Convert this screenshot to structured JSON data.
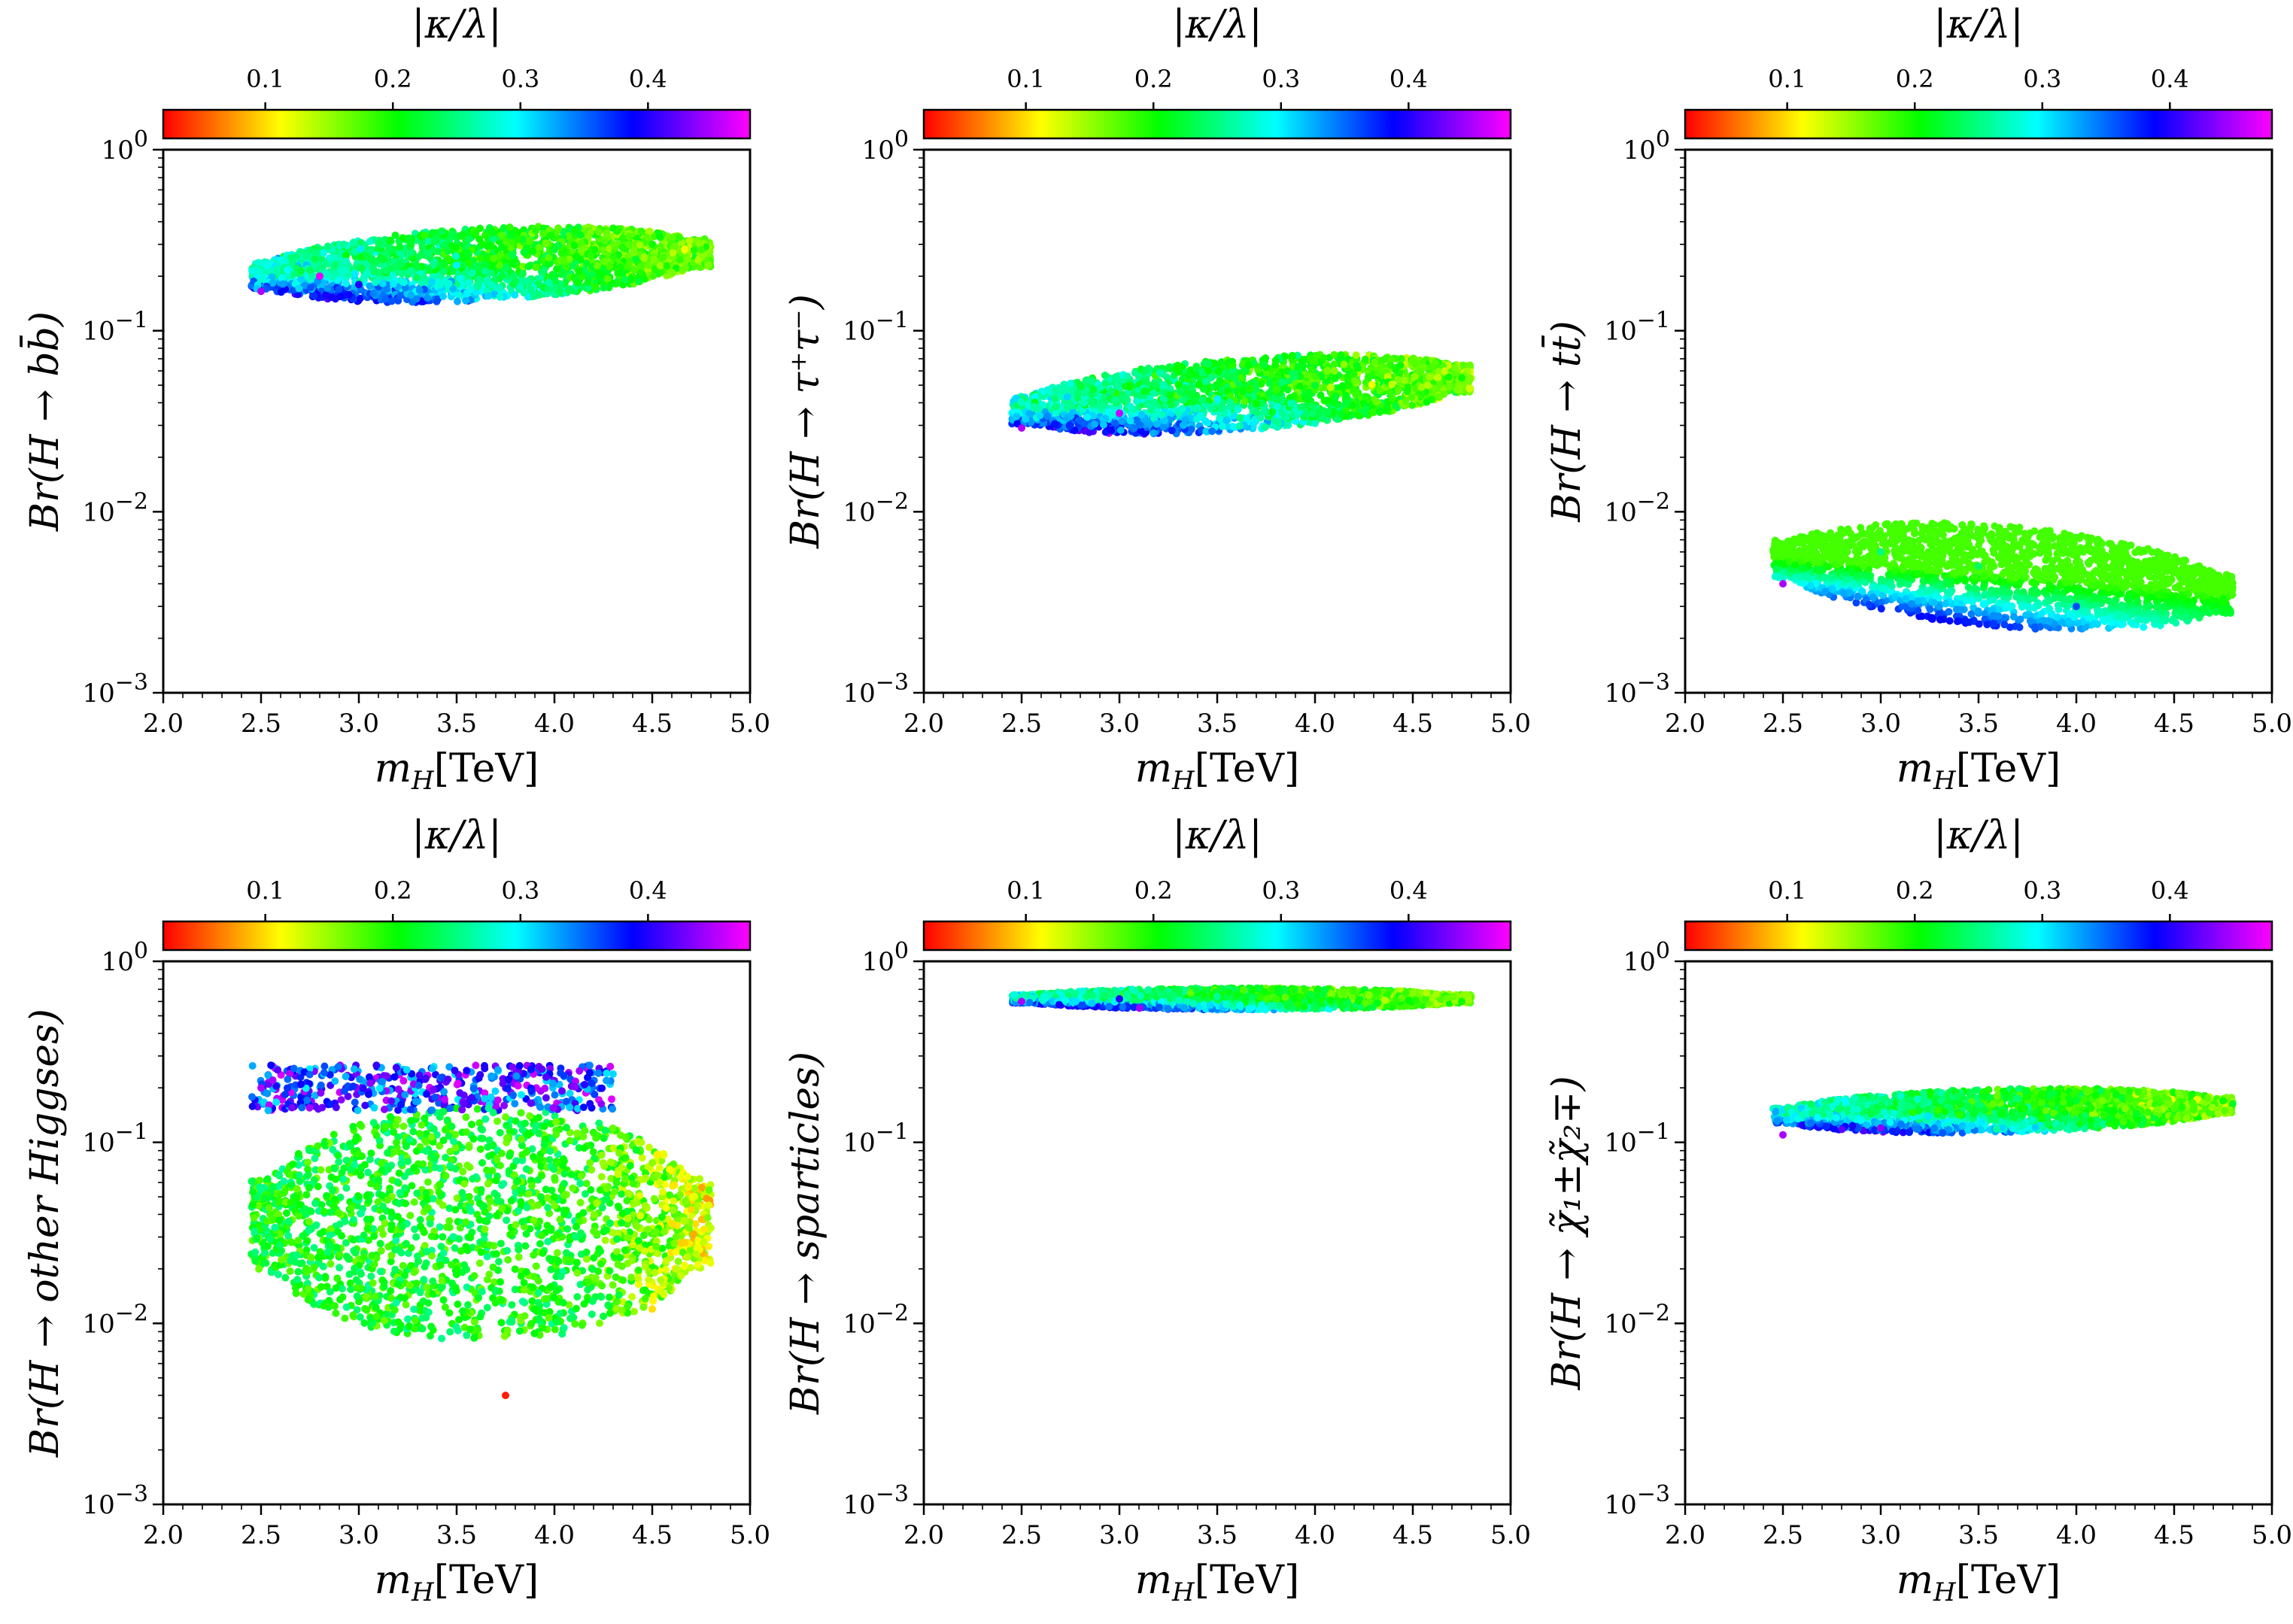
{
  "figure": {
    "colormap_stops": [
      "#ff0000",
      "#ffff00",
      "#00ff00",
      "#00ffff",
      "#0000ff",
      "#ff00ff"
    ]
  },
  "chart_data": [
    {
      "type": "scatter",
      "xlabel_main": "m",
      "xlabel_sub": "H",
      "xlabel_unit": "[TeV]",
      "ylabel": "Br(H → bb̄)",
      "xlim": [
        2.0,
        5.0
      ],
      "ylim": [
        0.001,
        1
      ],
      "yscale": "log",
      "xticks": [
        "2.0",
        "2.5",
        "3.0",
        "3.5",
        "4.0",
        "4.5",
        "5.0"
      ],
      "yticks": [
        {
          "base": "10",
          "exp": "0"
        },
        {
          "base": "10",
          "exp": "−1"
        },
        {
          "base": "10",
          "exp": "−2"
        },
        {
          "base": "10",
          "exp": "−3"
        }
      ],
      "colorbar": {
        "label": "|κ/λ|",
        "range": [
          0.02,
          0.48
        ],
        "ticks": [
          "0.1",
          "0.2",
          "0.3",
          "0.4"
        ]
      },
      "region": {
        "x": [
          2.45,
          4.8
        ],
        "y_center_start": 0.2,
        "y_center_end": 0.27,
        "spread_dex": 0.2,
        "seed": 11
      },
      "points": [
        {
          "x": 2.5,
          "y": 0.165,
          "c": 0.45
        },
        {
          "x": 2.8,
          "y": 0.2,
          "c": 0.47
        },
        {
          "x": 3.0,
          "y": 0.18,
          "c": 0.4
        },
        {
          "x": 3.5,
          "y": 0.23,
          "c": 0.3
        },
        {
          "x": 4.0,
          "y": 0.28,
          "c": 0.22
        },
        {
          "x": 4.5,
          "y": 0.3,
          "c": 0.2
        },
        {
          "x": 4.75,
          "y": 0.28,
          "c": 0.18
        }
      ]
    },
    {
      "type": "scatter",
      "xlabel_main": "m",
      "xlabel_sub": "H",
      "xlabel_unit": "[TeV]",
      "ylabel": "Br(H → τ⁺τ⁻)",
      "xlim": [
        2.0,
        5.0
      ],
      "ylim": [
        0.001,
        1
      ],
      "yscale": "log",
      "xticks": [
        "2.0",
        "2.5",
        "3.0",
        "3.5",
        "4.0",
        "4.5",
        "5.0"
      ],
      "yticks": [
        {
          "base": "10",
          "exp": "0"
        },
        {
          "base": "10",
          "exp": "−1"
        },
        {
          "base": "10",
          "exp": "−2"
        },
        {
          "base": "10",
          "exp": "−3"
        }
      ],
      "colorbar": {
        "label": "|κ/λ|",
        "range": [
          0.02,
          0.48
        ],
        "ticks": [
          "0.1",
          "0.2",
          "0.3",
          "0.4"
        ]
      },
      "region": {
        "x": [
          2.45,
          4.8
        ],
        "y_center_start": 0.036,
        "y_center_end": 0.055,
        "spread_dex": 0.2,
        "seed": 23
      },
      "points": [
        {
          "x": 2.5,
          "y": 0.029,
          "c": 0.45
        },
        {
          "x": 3.0,
          "y": 0.035,
          "c": 0.46
        },
        {
          "x": 3.5,
          "y": 0.042,
          "c": 0.3
        },
        {
          "x": 4.0,
          "y": 0.05,
          "c": 0.22
        },
        {
          "x": 4.75,
          "y": 0.055,
          "c": 0.2
        }
      ]
    },
    {
      "type": "scatter",
      "xlabel_main": "m",
      "xlabel_sub": "H",
      "xlabel_unit": "[TeV]",
      "ylabel": "Br(H → tt̄)",
      "xlim": [
        2.0,
        5.0
      ],
      "ylim": [
        0.001,
        1
      ],
      "yscale": "log",
      "xticks": [
        "2.0",
        "2.5",
        "3.0",
        "3.5",
        "4.0",
        "4.5",
        "5.0"
      ],
      "yticks": [
        {
          "base": "10",
          "exp": "0"
        },
        {
          "base": "10",
          "exp": "−1"
        },
        {
          "base": "10",
          "exp": "−2"
        },
        {
          "base": "10",
          "exp": "−3"
        }
      ],
      "colorbar": {
        "label": "|κ/λ|",
        "range": [
          0.02,
          0.48
        ],
        "ticks": [
          "0.1",
          "0.2",
          "0.3",
          "0.4"
        ]
      },
      "region": {
        "x": [
          2.45,
          4.8
        ],
        "y_center_start": 0.0055,
        "y_center_end": 0.0035,
        "spread_dex": 0.28,
        "seed": 37
      },
      "points": [
        {
          "x": 2.5,
          "y": 0.004,
          "c": 0.45
        },
        {
          "x": 3.0,
          "y": 0.006,
          "c": 0.25
        },
        {
          "x": 3.5,
          "y": 0.005,
          "c": 0.24
        },
        {
          "x": 4.0,
          "y": 0.003,
          "c": 0.36
        },
        {
          "x": 4.75,
          "y": 0.0033,
          "c": 0.2
        }
      ]
    },
    {
      "type": "scatter",
      "xlabel_main": "m",
      "xlabel_sub": "H",
      "xlabel_unit": "[TeV]",
      "ylabel": "Br(H → other Higgses)",
      "xlim": [
        2.0,
        5.0
      ],
      "ylim": [
        0.001,
        1
      ],
      "yscale": "log",
      "xticks": [
        "2.0",
        "2.5",
        "3.0",
        "3.5",
        "4.0",
        "4.5",
        "5.0"
      ],
      "yticks": [
        {
          "base": "10",
          "exp": "0"
        },
        {
          "base": "10",
          "exp": "−1"
        },
        {
          "base": "10",
          "exp": "−2"
        },
        {
          "base": "10",
          "exp": "−3"
        }
      ],
      "colorbar": {
        "label": "|κ/λ|",
        "range": [
          0.02,
          0.48
        ],
        "ticks": [
          "0.1",
          "0.2",
          "0.3",
          "0.4"
        ]
      },
      "region": {
        "x": [
          2.45,
          4.8
        ],
        "y_center_start": 0.05,
        "y_center_end": 0.05,
        "spread_dex": 0.6,
        "seed": 41
      },
      "points": [
        {
          "x": 2.5,
          "y": 0.2,
          "c": 0.45
        },
        {
          "x": 3.0,
          "y": 0.05,
          "c": 0.21
        },
        {
          "x": 3.5,
          "y": 0.02,
          "c": 0.2
        },
        {
          "x": 4.0,
          "y": 0.05,
          "c": 0.2
        },
        {
          "x": 4.5,
          "y": 0.012,
          "c": 0.1
        },
        {
          "x": 3.75,
          "y": 0.004,
          "c": 0.03
        }
      ]
    },
    {
      "type": "scatter",
      "xlabel_main": "m",
      "xlabel_sub": "H",
      "xlabel_unit": "[TeV]",
      "ylabel": "Br(H → sparticles)",
      "xlim": [
        2.0,
        5.0
      ],
      "ylim": [
        0.001,
        1
      ],
      "yscale": "log",
      "xticks": [
        "2.0",
        "2.5",
        "3.0",
        "3.5",
        "4.0",
        "4.5",
        "5.0"
      ],
      "yticks": [
        {
          "base": "10",
          "exp": "0"
        },
        {
          "base": "10",
          "exp": "−1"
        },
        {
          "base": "10",
          "exp": "−2"
        },
        {
          "base": "10",
          "exp": "−3"
        }
      ],
      "colorbar": {
        "label": "|κ/λ|",
        "range": [
          0.02,
          0.48
        ],
        "ticks": [
          "0.1",
          "0.2",
          "0.3",
          "0.4"
        ]
      },
      "region": {
        "x": [
          2.45,
          4.8
        ],
        "y_center_start": 0.62,
        "y_center_end": 0.62,
        "spread_dex": 0.06,
        "seed": 53
      },
      "points": [
        {
          "x": 2.5,
          "y": 0.6,
          "c": 0.45
        },
        {
          "x": 3.0,
          "y": 0.62,
          "c": 0.4
        },
        {
          "x": 3.5,
          "y": 0.64,
          "c": 0.26
        },
        {
          "x": 4.0,
          "y": 0.62,
          "c": 0.22
        },
        {
          "x": 4.75,
          "y": 0.6,
          "c": 0.2
        }
      ]
    },
    {
      "type": "scatter",
      "xlabel_main": "m",
      "xlabel_sub": "H",
      "xlabel_unit": "[TeV]",
      "ylabel": "Br(H → χ̃₁±χ̃₂∓)",
      "xlim": [
        2.0,
        5.0
      ],
      "ylim": [
        0.001,
        1
      ],
      "yscale": "log",
      "xticks": [
        "2.0",
        "2.5",
        "3.0",
        "3.5",
        "4.0",
        "4.5",
        "5.0"
      ],
      "yticks": [
        {
          "base": "10",
          "exp": "0"
        },
        {
          "base": "10",
          "exp": "−1"
        },
        {
          "base": "10",
          "exp": "−2"
        },
        {
          "base": "10",
          "exp": "−3"
        }
      ],
      "colorbar": {
        "label": "|κ/λ|",
        "range": [
          0.02,
          0.48
        ],
        "ticks": [
          "0.1",
          "0.2",
          "0.3",
          "0.4"
        ]
      },
      "region": {
        "x": [
          2.45,
          4.8
        ],
        "y_center_start": 0.14,
        "y_center_end": 0.16,
        "spread_dex": 0.12,
        "seed": 67
      },
      "points": [
        {
          "x": 2.5,
          "y": 0.11,
          "c": 0.45
        },
        {
          "x": 3.0,
          "y": 0.12,
          "c": 0.44
        },
        {
          "x": 3.5,
          "y": 0.16,
          "c": 0.24
        },
        {
          "x": 4.0,
          "y": 0.17,
          "c": 0.22
        },
        {
          "x": 4.75,
          "y": 0.17,
          "c": 0.2
        }
      ]
    }
  ]
}
